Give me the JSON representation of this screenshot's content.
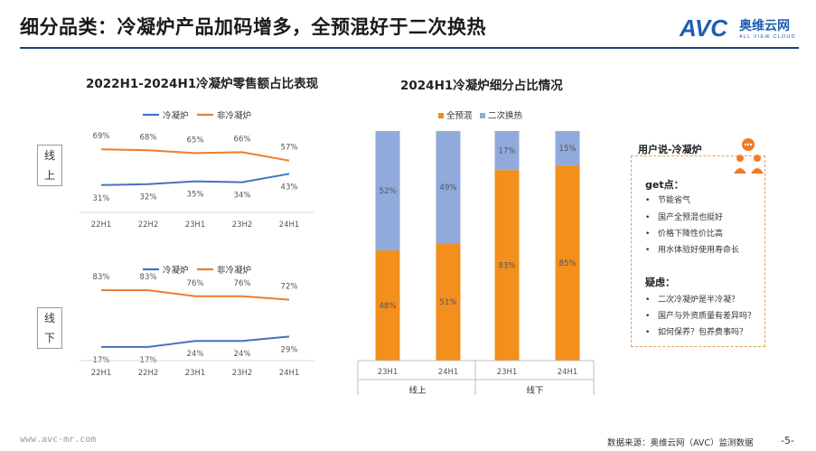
{
  "header": {
    "title": "细分品类：冷凝炉产品加码增多，全预混好于二次换热",
    "logo_text": "AVC",
    "logo_cn": "奥维云网",
    "logo_sub": "ALL VIEW CLOUD"
  },
  "colors": {
    "leng": "#4472c4",
    "fei": "#ed7d31",
    "quanyuhun": "#f28f1d",
    "erci": "#91aadc",
    "rule": "#1f3f7a",
    "brand": "#1f5fb0"
  },
  "left_chart": {
    "title": "2022H1-2024H1冷凝炉零售额占比表现",
    "legend": [
      "冷凝炉",
      "非冷凝炉"
    ],
    "online_label": [
      "线",
      "上"
    ],
    "offline_label": [
      "线",
      "下"
    ]
  },
  "right_chart": {
    "title": "2024H1冷凝炉细分占比情况",
    "legend": [
      "全预混",
      "二次换热"
    ],
    "group_labels": [
      "线上",
      "线下"
    ]
  },
  "chart_data": [
    {
      "type": "line",
      "title": "2022H1-2024H1冷凝炉零售额占比表现",
      "panel": "线上",
      "categories": [
        "22H1",
        "22H2",
        "23H1",
        "23H2",
        "24H1"
      ],
      "series": [
        {
          "name": "冷凝炉",
          "values": [
            31,
            32,
            35,
            34,
            43
          ],
          "labels": [
            "31%",
            "32%",
            "35%",
            "34%",
            "43%"
          ]
        },
        {
          "name": "非冷凝炉",
          "values": [
            69,
            68,
            65,
            66,
            57
          ],
          "labels": [
            "69%",
            "68%",
            "65%",
            "66%",
            "57%"
          ]
        }
      ],
      "grid": false,
      "legend": "top"
    },
    {
      "type": "line",
      "panel": "线下",
      "categories": [
        "22H1",
        "22H2",
        "23H1",
        "23H2",
        "24H1"
      ],
      "series": [
        {
          "name": "冷凝炉",
          "values": [
            17,
            17,
            24,
            24,
            29
          ],
          "labels": [
            "17%",
            "17%",
            "24%",
            "24%",
            "29%"
          ]
        },
        {
          "name": "非冷凝炉",
          "values": [
            83,
            83,
            76,
            76,
            72
          ],
          "labels": [
            "83%",
            "83%",
            "76%",
            "76%",
            "72%"
          ]
        }
      ],
      "grid": false,
      "legend": "top"
    },
    {
      "type": "bar",
      "stacked": true,
      "title": "2024H1冷凝炉细分占比情况",
      "categories": [
        "23H1",
        "24H1",
        "23H1",
        "24H1"
      ],
      "groups": [
        "线上",
        "线上",
        "线下",
        "线下"
      ],
      "series": [
        {
          "name": "全预混",
          "values": [
            48,
            51,
            83,
            85
          ],
          "labels": [
            "48%",
            "51%",
            "83%",
            "85%"
          ]
        },
        {
          "name": "二次换热",
          "values": [
            52,
            49,
            17,
            15
          ],
          "labels": [
            "52%",
            "49%",
            "17%",
            "15%"
          ]
        }
      ],
      "ylim": [
        0,
        100
      ],
      "grid": false,
      "legend": "top"
    }
  ],
  "user_box": {
    "title": "用户说-冷凝炉",
    "get_title": "get点：",
    "get_items": [
      "节能省气",
      "国产全预混也挺好",
      "价格下降性价比高",
      "用水体验好使用寿命长"
    ],
    "doubt_title": "疑虑：",
    "doubt_items": [
      "二次冷凝炉是半冷凝？",
      "国产与外资质量有差异吗？",
      "如何保养？包养费事吗？"
    ]
  },
  "footer": {
    "url": "www.avc-mr.com",
    "source": "数据来源：奥维云网（AVC）监测数据",
    "page": "-5-"
  }
}
